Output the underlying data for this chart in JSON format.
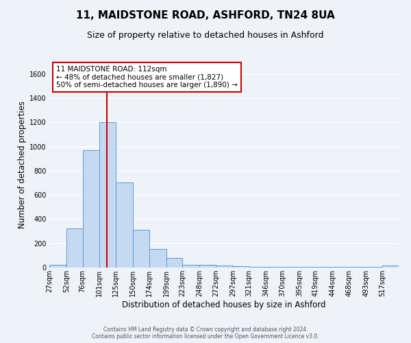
{
  "title": "11, MAIDSTONE ROAD, ASHFORD, TN24 8UA",
  "subtitle": "Size of property relative to detached houses in Ashford",
  "xlabel": "Distribution of detached houses by size in Ashford",
  "ylabel": "Number of detached properties",
  "bin_labels": [
    "27sqm",
    "52sqm",
    "76sqm",
    "101sqm",
    "125sqm",
    "150sqm",
    "174sqm",
    "199sqm",
    "223sqm",
    "248sqm",
    "272sqm",
    "297sqm",
    "321sqm",
    "346sqm",
    "370sqm",
    "395sqm",
    "419sqm",
    "444sqm",
    "468sqm",
    "493sqm",
    "517sqm"
  ],
  "bin_edges": [
    27,
    52,
    76,
    101,
    125,
    150,
    174,
    199,
    223,
    248,
    272,
    297,
    321,
    346,
    370,
    395,
    419,
    444,
    468,
    493,
    517
  ],
  "bar_heights": [
    25,
    325,
    970,
    1200,
    700,
    310,
    155,
    80,
    25,
    20,
    15,
    10,
    5,
    5,
    5,
    5,
    5,
    5,
    5,
    5,
    15
  ],
  "bar_color": "#c5d9f0",
  "bar_edge_color": "#5b9bd5",
  "ylim": [
    0,
    1700
  ],
  "yticks": [
    0,
    200,
    400,
    600,
    800,
    1000,
    1200,
    1400,
    1600
  ],
  "vline_x": 112,
  "vline_color": "#cc0000",
  "annotation_line1": "11 MAIDSTONE ROAD: 112sqm",
  "annotation_line2": "← 48% of detached houses are smaller (1,827)",
  "annotation_line3": "50% of semi-detached houses are larger (1,890) →",
  "annotation_box_color": "#ffffff",
  "annotation_box_edge": "#cc0000",
  "footer_line1": "Contains HM Land Registry data © Crown copyright and database right 2024.",
  "footer_line2": "Contains public sector information licensed under the Open Government Licence v3.0.",
  "background_color": "#eef2f9",
  "grid_color": "#ffffff",
  "title_fontsize": 11,
  "subtitle_fontsize": 9,
  "tick_fontsize": 7,
  "ylabel_fontsize": 8.5,
  "xlabel_fontsize": 8.5,
  "annotation_fontsize": 7.5,
  "footer_fontsize": 5.5
}
